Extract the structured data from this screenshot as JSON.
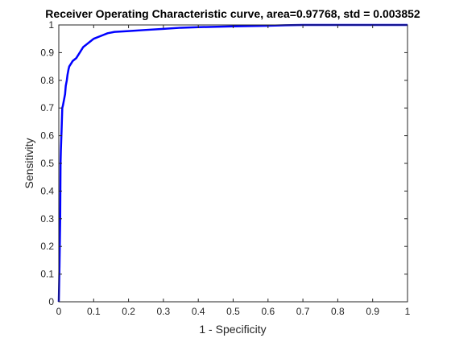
{
  "chart_data": {
    "type": "line",
    "title": "Receiver Operating Characteristic curve, area=0.97768, std = 0.003852",
    "xlabel": "1 - Specificity",
    "ylabel": "Sensitivity",
    "xlim": [
      0,
      1
    ],
    "ylim": [
      0,
      1
    ],
    "grid": false,
    "x_ticks": [
      0,
      0.1,
      0.2,
      0.3,
      0.4,
      0.5,
      0.6,
      0.7,
      0.8,
      0.9,
      1
    ],
    "y_ticks": [
      0,
      0.1,
      0.2,
      0.3,
      0.4,
      0.5,
      0.6,
      0.7,
      0.8,
      0.9,
      1
    ],
    "x_tick_labels": [
      "0",
      "0.1",
      "0.2",
      "0.3",
      "0.4",
      "0.5",
      "0.6",
      "0.7",
      "0.8",
      "0.9",
      "1"
    ],
    "y_tick_labels": [
      "0",
      "0.1",
      "0.2",
      "0.3",
      "0.4",
      "0.5",
      "0.6",
      "0.7",
      "0.8",
      "0.9",
      "1"
    ],
    "series": [
      {
        "color": "#0000ff",
        "x": [
          0,
          0.002,
          0.004,
          0.005,
          0.006,
          0.008,
          0.01,
          0.012,
          0.015,
          0.018,
          0.02,
          0.023,
          0.025,
          0.028,
          0.03,
          0.035,
          0.04,
          0.05,
          0.06,
          0.07,
          0.08,
          0.09,
          0.1,
          0.12,
          0.14,
          0.16,
          0.2,
          0.25,
          0.3,
          0.35,
          0.4,
          0.5,
          0.6,
          0.65,
          0.7,
          0.8,
          0.9,
          1.0
        ],
        "y": [
          0,
          0.13,
          0.3,
          0.5,
          0.55,
          0.62,
          0.7,
          0.71,
          0.73,
          0.75,
          0.78,
          0.8,
          0.82,
          0.84,
          0.85,
          0.86,
          0.87,
          0.88,
          0.9,
          0.92,
          0.93,
          0.94,
          0.95,
          0.96,
          0.97,
          0.975,
          0.978,
          0.982,
          0.986,
          0.99,
          0.992,
          0.995,
          0.997,
          0.999,
          1.0,
          1.0,
          1.0,
          1.0
        ]
      }
    ]
  }
}
